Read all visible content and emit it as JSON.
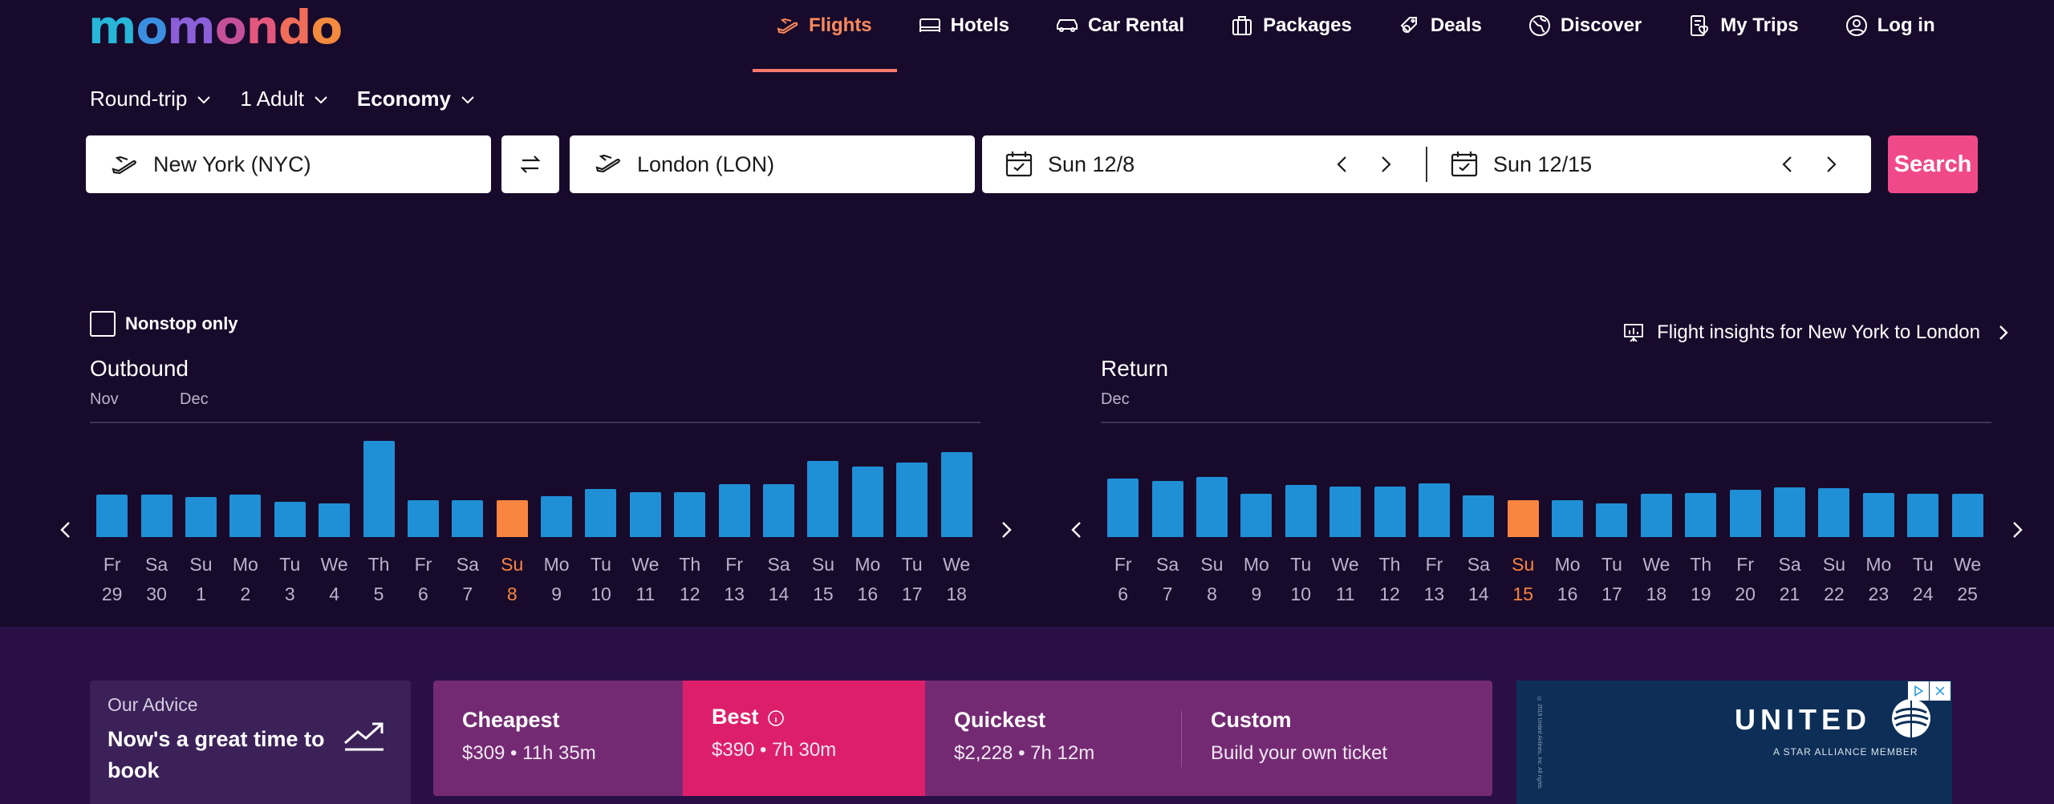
{
  "logo": {
    "letters": [
      "m",
      "o",
      "m",
      "o",
      "n",
      "d",
      "o"
    ]
  },
  "nav": {
    "items": [
      {
        "label": "Flights",
        "icon": "plane-icon"
      },
      {
        "label": "Hotels",
        "icon": "bed-icon"
      },
      {
        "label": "Car Rental",
        "icon": "car-icon"
      },
      {
        "label": "Packages",
        "icon": "suitcase-icon"
      },
      {
        "label": "Deals",
        "icon": "tag-icon"
      },
      {
        "label": "Discover",
        "icon": "globe-icon"
      },
      {
        "label": "My Trips",
        "icon": "trips-icon"
      },
      {
        "label": "Log in",
        "icon": "user-icon"
      }
    ],
    "active": "Flights"
  },
  "options": {
    "trip_type": "Round-trip",
    "travelers": "1 Adult",
    "cabin": "Economy"
  },
  "search": {
    "origin": "New York (NYC)",
    "destination": "London (LON)",
    "depart": "Sun 12/8",
    "return": "Sun 12/15",
    "button": "Search"
  },
  "filters": {
    "nonstop_label": "Nonstop only",
    "insights": "Flight insights for New York to London"
  },
  "outbound": {
    "title": "Outbound",
    "months": [
      "Nov",
      "Dec"
    ],
    "days": [
      "Fr",
      "Sa",
      "Su",
      "Mo",
      "Tu",
      "We",
      "Th",
      "Fr",
      "Sa",
      "Su",
      "Mo",
      "Tu",
      "We",
      "Th",
      "Fr",
      "Sa",
      "Su",
      "Mo",
      "Tu",
      "We"
    ],
    "dates": [
      "29",
      "30",
      "1",
      "2",
      "3",
      "4",
      "5",
      "6",
      "7",
      "8",
      "9",
      "10",
      "11",
      "12",
      "13",
      "14",
      "15",
      "16",
      "17",
      "18"
    ],
    "values": [
      53,
      53,
      50,
      53,
      44,
      42,
      120,
      46,
      46,
      46,
      51,
      60,
      56,
      56,
      66,
      66,
      95,
      88,
      93,
      106
    ],
    "selected_index": 9
  },
  "return": {
    "title": "Return",
    "months": [
      "Dec"
    ],
    "days": [
      "Fr",
      "Sa",
      "Su",
      "Mo",
      "Tu",
      "We",
      "Th",
      "Fr",
      "Sa",
      "Su",
      "Mo",
      "Tu",
      "We",
      "Th",
      "Fr",
      "Sa",
      "Su",
      "Mo",
      "Tu",
      "We"
    ],
    "dates": [
      "6",
      "7",
      "8",
      "9",
      "10",
      "11",
      "12",
      "13",
      "14",
      "15",
      "16",
      "17",
      "18",
      "19",
      "20",
      "21",
      "22",
      "23",
      "24",
      "25"
    ],
    "values": [
      73,
      70,
      75,
      54,
      65,
      63,
      63,
      67,
      52,
      46,
      46,
      42,
      54,
      55,
      59,
      62,
      61,
      55,
      54,
      54
    ],
    "selected_index": 9
  },
  "advice": {
    "sub": "Our Advice",
    "main": "Now's a great time to book"
  },
  "sort_tabs": [
    {
      "title": "Cheapest",
      "detail": "$309 • 11h 35m"
    },
    {
      "title": "Best",
      "detail": "$390 • 7h 30m"
    },
    {
      "title": "Quickest",
      "detail": "$2,228 • 7h 12m"
    },
    {
      "title": "Custom",
      "detail": "Build your own ticket"
    }
  ],
  "ad": {
    "brand": "UNITED",
    "tagline": "A STAR ALLIANCE MEMBER",
    "fine_print": "© 2019 United Airlines, Inc. All rights"
  },
  "colors": {
    "background": "#170a2b",
    "accent": "#ff8a5b",
    "search": "#f0498a",
    "bar": "#1f8fd6",
    "bar_selected": "#f98540",
    "best_tab": "#dd1f6b"
  }
}
